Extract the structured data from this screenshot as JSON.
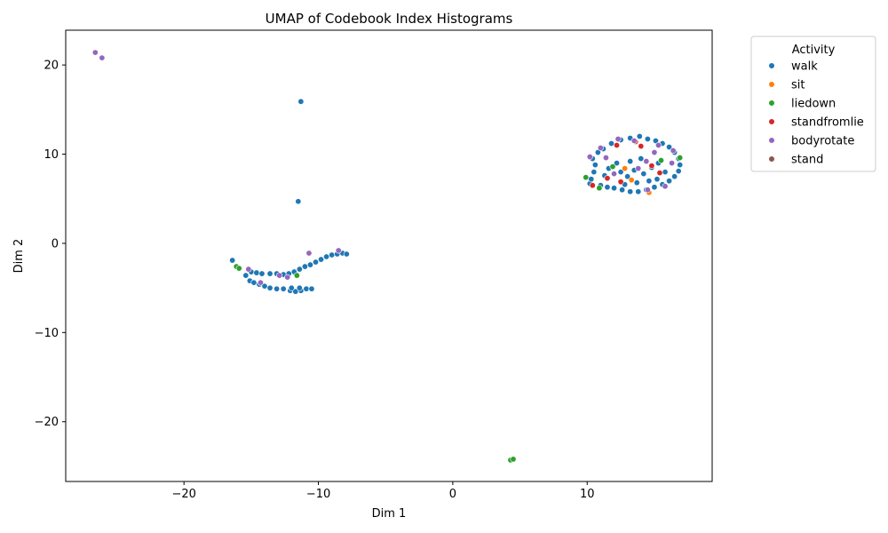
{
  "chart_data": {
    "type": "scatter",
    "title": "UMAP of Codebook Index Histograms",
    "xlabel": "Dim 1",
    "ylabel": "Dim 2",
    "xlim": [
      -28.8,
      19.3
    ],
    "ylim": [
      -26.7,
      23.9
    ],
    "xticks": [
      -20,
      -10,
      0,
      10
    ],
    "yticks": [
      -20,
      -10,
      0,
      10,
      20
    ],
    "grid": false,
    "legend": {
      "title": "Activity",
      "placement": "outside-top-right"
    },
    "series": [
      {
        "name": "walk",
        "color": "#1f77b4",
        "points": [
          [
            -11.3,
            15.9
          ],
          [
            -11.5,
            4.7
          ],
          [
            -16.4,
            -1.9
          ],
          [
            -15.4,
            -3.6
          ],
          [
            -15.1,
            -4.2
          ],
          [
            -14.8,
            -4.4
          ],
          [
            -14.4,
            -4.6
          ],
          [
            -14.0,
            -4.8
          ],
          [
            -13.6,
            -5.0
          ],
          [
            -13.1,
            -5.1
          ],
          [
            -12.6,
            -5.1
          ],
          [
            -12.1,
            -5.3
          ],
          [
            -11.7,
            -5.4
          ],
          [
            -11.3,
            -5.3
          ],
          [
            -10.9,
            -5.1
          ],
          [
            -10.5,
            -5.1
          ],
          [
            -12.0,
            -5.0
          ],
          [
            -11.4,
            -5.0
          ],
          [
            -15.0,
            -3.2
          ],
          [
            -14.6,
            -3.3
          ],
          [
            -14.2,
            -3.4
          ],
          [
            -13.6,
            -3.4
          ],
          [
            -13.1,
            -3.4
          ],
          [
            -12.6,
            -3.5
          ],
          [
            -12.2,
            -3.4
          ],
          [
            -11.8,
            -3.2
          ],
          [
            -11.4,
            -2.9
          ],
          [
            -11.0,
            -2.6
          ],
          [
            -10.6,
            -2.4
          ],
          [
            -10.2,
            -2.1
          ],
          [
            -9.8,
            -1.8
          ],
          [
            -9.4,
            -1.5
          ],
          [
            -9.0,
            -1.3
          ],
          [
            -8.6,
            -1.2
          ],
          [
            -8.2,
            -1.1
          ],
          [
            -7.9,
            -1.2
          ],
          [
            10.2,
            6.7
          ],
          [
            10.3,
            7.2
          ],
          [
            10.5,
            8.0
          ],
          [
            10.6,
            8.8
          ],
          [
            10.4,
            9.5
          ],
          [
            10.8,
            10.2
          ],
          [
            11.2,
            10.6
          ],
          [
            11.8,
            11.2
          ],
          [
            12.5,
            11.6
          ],
          [
            13.2,
            11.8
          ],
          [
            13.9,
            12.0
          ],
          [
            14.5,
            11.7
          ],
          [
            15.1,
            11.5
          ],
          [
            15.6,
            11.2
          ],
          [
            16.1,
            10.8
          ],
          [
            16.5,
            10.2
          ],
          [
            16.8,
            9.5
          ],
          [
            16.9,
            8.8
          ],
          [
            16.8,
            8.1
          ],
          [
            16.5,
            7.5
          ],
          [
            16.1,
            7.0
          ],
          [
            15.6,
            6.6
          ],
          [
            15.0,
            6.3
          ],
          [
            14.4,
            6.0
          ],
          [
            13.8,
            5.8
          ],
          [
            13.2,
            5.8
          ],
          [
            12.6,
            6.0
          ],
          [
            12.0,
            6.2
          ],
          [
            11.5,
            6.3
          ],
          [
            11.0,
            6.5
          ],
          [
            12.5,
            8.0
          ],
          [
            13.0,
            7.5
          ],
          [
            13.5,
            8.2
          ],
          [
            14.2,
            7.8
          ],
          [
            14.8,
            8.5
          ],
          [
            15.3,
            9.0
          ],
          [
            14.0,
            9.5
          ],
          [
            13.2,
            9.2
          ],
          [
            12.2,
            9.0
          ],
          [
            11.6,
            8.4
          ],
          [
            11.3,
            7.6
          ],
          [
            15.8,
            8.0
          ],
          [
            15.2,
            7.2
          ],
          [
            14.6,
            7.0
          ],
          [
            13.7,
            6.8
          ],
          [
            12.8,
            6.6
          ]
        ]
      },
      {
        "name": "sit",
        "color": "#ff7f0e",
        "points": [
          [
            12.8,
            8.4
          ],
          [
            14.6,
            5.7
          ],
          [
            13.3,
            7.1
          ]
        ]
      },
      {
        "name": "liedown",
        "color": "#2ca02c",
        "points": [
          [
            4.3,
            -24.3
          ],
          [
            4.5,
            -24.2
          ],
          [
            -16.1,
            -2.6
          ],
          [
            -15.9,
            -2.8
          ],
          [
            -11.6,
            -3.6
          ],
          [
            9.9,
            7.4
          ],
          [
            10.9,
            6.2
          ],
          [
            16.9,
            9.6
          ],
          [
            11.9,
            8.6
          ],
          [
            15.5,
            9.3
          ]
        ]
      },
      {
        "name": "standfromlie",
        "color": "#d62728",
        "points": [
          [
            10.4,
            6.5
          ],
          [
            14.0,
            10.9
          ],
          [
            12.5,
            6.9
          ],
          [
            14.8,
            8.7
          ],
          [
            11.5,
            7.3
          ],
          [
            15.4,
            7.9
          ],
          [
            13.6,
            11.4
          ],
          [
            12.2,
            11.0
          ]
        ]
      },
      {
        "name": "bodyrotate",
        "color": "#9467bd",
        "points": [
          [
            -26.6,
            21.4
          ],
          [
            -26.1,
            20.8
          ],
          [
            -15.2,
            -2.9
          ],
          [
            -14.3,
            -4.4
          ],
          [
            -12.9,
            -3.6
          ],
          [
            -12.3,
            -3.8
          ],
          [
            -10.7,
            -1.1
          ],
          [
            -8.5,
            -0.8
          ],
          [
            10.2,
            9.7
          ],
          [
            11.0,
            10.7
          ],
          [
            12.3,
            11.7
          ],
          [
            13.5,
            11.5
          ],
          [
            15.3,
            11.0
          ],
          [
            16.4,
            10.4
          ],
          [
            16.3,
            9.0
          ],
          [
            15.8,
            6.4
          ],
          [
            14.5,
            6.0
          ],
          [
            12.0,
            7.8
          ],
          [
            13.8,
            8.4
          ],
          [
            14.4,
            9.2
          ],
          [
            11.4,
            9.6
          ],
          [
            15.0,
            10.2
          ]
        ]
      },
      {
        "name": "stand",
        "color": "#8c564b",
        "points": []
      }
    ]
  }
}
